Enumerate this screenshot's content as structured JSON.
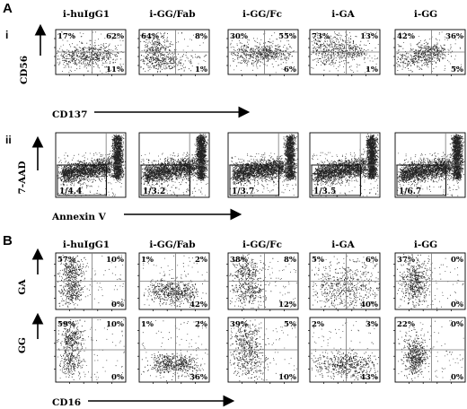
{
  "figure": {
    "panels": [
      {
        "letter": "A",
        "rows": [
          {
            "label": "i",
            "type": "quadrant",
            "y_label": "CD56",
            "x_label": "CD137",
            "plots": [
              {
                "title": "i-huIgG1",
                "ul": "17%",
                "ur": "62%",
                "ll": "",
                "lr": "11%",
                "cloud": [
                  [
                    0.55,
                    0.55,
                    0.18,
                    0.12,
                    0.7
                  ],
                  [
                    0.25,
                    0.62,
                    0.15,
                    0.1,
                    0.3
                  ]
                ]
              },
              {
                "title": "i-GG/Fab",
                "ul": "64%",
                "ur": "8%",
                "ll": "",
                "lr": "1%",
                "cloud": [
                  [
                    0.22,
                    0.45,
                    0.12,
                    0.2,
                    0.6
                  ],
                  [
                    0.4,
                    0.7,
                    0.2,
                    0.1,
                    0.4
                  ]
                ]
              },
              {
                "title": "i-GG/Fc",
                "ul": "30%",
                "ur": "55%",
                "ll": "",
                "lr": "6%",
                "cloud": [
                  [
                    0.58,
                    0.5,
                    0.15,
                    0.1,
                    0.6
                  ],
                  [
                    0.25,
                    0.55,
                    0.15,
                    0.12,
                    0.4
                  ]
                ]
              },
              {
                "title": "i-GA",
                "ul": "73%",
                "ur": "13%",
                "ll": "",
                "lr": "1%",
                "cloud": [
                  [
                    0.3,
                    0.45,
                    0.2,
                    0.18,
                    0.8
                  ],
                  [
                    0.6,
                    0.5,
                    0.1,
                    0.1,
                    0.2
                  ]
                ]
              },
              {
                "title": "i-GG",
                "ul": "42%",
                "ur": "36%",
                "ll": "",
                "lr": "5%",
                "cloud": [
                  [
                    0.5,
                    0.5,
                    0.12,
                    0.1,
                    0.6
                  ],
                  [
                    0.25,
                    0.65,
                    0.15,
                    0.12,
                    0.4
                  ]
                ]
              }
            ]
          },
          {
            "label": "ii",
            "type": "apoptosis",
            "y_label": "7-AAD",
            "x_label": "Annexin V",
            "plots": [
              {
                "ratio": "1/4.4"
              },
              {
                "ratio": "1/3.2"
              },
              {
                "ratio": "1/3.7"
              },
              {
                "ratio": "1/3.5"
              },
              {
                "ratio": "1/6.7"
              }
            ]
          }
        ]
      },
      {
        "letter": "B",
        "rows": [
          {
            "label": "",
            "type": "quadrant",
            "y_label": "GA",
            "x_label": "",
            "plots": [
              {
                "title": "i-huIgG1",
                "ul": "57%",
                "ur": "10%",
                "ll": "",
                "lr": "0%",
                "cloud": [
                  [
                    0.22,
                    0.32,
                    0.08,
                    0.12,
                    0.5
                  ],
                  [
                    0.22,
                    0.68,
                    0.08,
                    0.12,
                    0.5
                  ]
                ]
              },
              {
                "title": "i-GG/Fab",
                "ul": "1%",
                "ur": "2%",
                "ll": "",
                "lr": "42%",
                "cloud": [
                  [
                    0.35,
                    0.68,
                    0.12,
                    0.1,
                    0.5
                  ],
                  [
                    0.62,
                    0.68,
                    0.12,
                    0.1,
                    0.5
                  ]
                ]
              },
              {
                "title": "i-GG/Fc",
                "ul": "38%",
                "ur": "8%",
                "ll": "",
                "lr": "12%",
                "cloud": [
                  [
                    0.25,
                    0.35,
                    0.12,
                    0.15,
                    0.6
                  ],
                  [
                    0.3,
                    0.7,
                    0.12,
                    0.12,
                    0.4
                  ]
                ]
              },
              {
                "title": "i-GA",
                "ul": "5%",
                "ur": "6%",
                "ll": "",
                "lr": "40%",
                "cloud": [
                  [
                    0.5,
                    0.6,
                    0.25,
                    0.2,
                    1.0
                  ]
                ]
              },
              {
                "title": "i-GG",
                "ul": "37%",
                "ur": "0%",
                "ll": "",
                "lr": "0%",
                "cloud": [
                  [
                    0.28,
                    0.5,
                    0.1,
                    0.2,
                    1.0
                  ]
                ]
              }
            ]
          },
          {
            "label": "",
            "type": "quadrant",
            "y_label": "GG",
            "x_label": "CD16",
            "plots": [
              {
                "ul": "59%",
                "ur": "10%",
                "ll": "",
                "lr": "0%",
                "cloud": [
                  [
                    0.22,
                    0.3,
                    0.08,
                    0.12,
                    0.6
                  ],
                  [
                    0.22,
                    0.7,
                    0.08,
                    0.1,
                    0.4
                  ]
                ]
              },
              {
                "ul": "1%",
                "ur": "2%",
                "ll": "",
                "lr": "36%",
                "cloud": [
                  [
                    0.35,
                    0.72,
                    0.1,
                    0.08,
                    0.5
                  ],
                  [
                    0.62,
                    0.72,
                    0.1,
                    0.08,
                    0.5
                  ]
                ]
              },
              {
                "ul": "39%",
                "ur": "5%",
                "ll": "",
                "lr": "10%",
                "cloud": [
                  [
                    0.25,
                    0.35,
                    0.12,
                    0.15,
                    0.6
                  ],
                  [
                    0.3,
                    0.7,
                    0.12,
                    0.12,
                    0.4
                  ]
                ]
              },
              {
                "ul": "2%",
                "ur": "3%",
                "ll": "",
                "lr": "43%",
                "cloud": [
                  [
                    0.5,
                    0.72,
                    0.22,
                    0.1,
                    1.0
                  ]
                ]
              },
              {
                "ul": "22%",
                "ur": "0%",
                "ll": "",
                "lr": "0%",
                "cloud": [
                  [
                    0.28,
                    0.6,
                    0.08,
                    0.15,
                    1.0
                  ]
                ]
              }
            ]
          }
        ]
      }
    ]
  }
}
